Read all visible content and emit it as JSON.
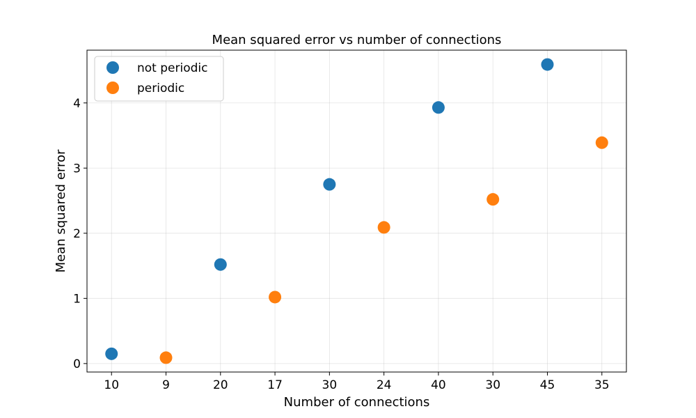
{
  "chart_data": {
    "type": "scatter",
    "title": "Mean squared error vs number of connections",
    "xlabel": "Number of connections",
    "ylabel": "Mean squared error",
    "categories": [
      "10",
      "9",
      "20",
      "17",
      "30",
      "24",
      "40",
      "30",
      "45",
      "35"
    ],
    "yticks": [
      0,
      1,
      2,
      3,
      4
    ],
    "ylim": [
      -0.13,
      4.81
    ],
    "grid": true,
    "legend_position": "top-left",
    "series": [
      {
        "name": "not periodic",
        "color": "#1f77b4",
        "points": [
          {
            "category_index": 0,
            "label": "10",
            "y": 0.15
          },
          {
            "category_index": 2,
            "label": "20",
            "y": 1.52
          },
          {
            "category_index": 4,
            "label": "30",
            "y": 2.75
          },
          {
            "category_index": 6,
            "label": "40",
            "y": 3.93
          },
          {
            "category_index": 8,
            "label": "45",
            "y": 4.59
          }
        ]
      },
      {
        "name": "periodic",
        "color": "#ff7f0e",
        "points": [
          {
            "category_index": 1,
            "label": "9",
            "y": 0.09
          },
          {
            "category_index": 3,
            "label": "17",
            "y": 1.02
          },
          {
            "category_index": 5,
            "label": "24",
            "y": 2.09
          },
          {
            "category_index": 7,
            "label": "30",
            "y": 2.52
          },
          {
            "category_index": 9,
            "label": "35",
            "y": 3.39
          }
        ]
      }
    ]
  }
}
